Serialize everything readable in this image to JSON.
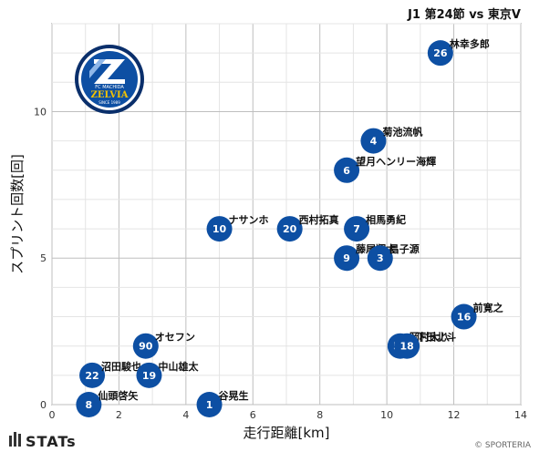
{
  "chart_data": {
    "type": "scatter",
    "title": "J1 第24節 vs 東京V",
    "xlabel": "走行距離[km]",
    "ylabel": "スプリント回数[回]",
    "xlim": [
      0,
      14
    ],
    "ylim": [
      0,
      13
    ],
    "xticks": [
      0,
      2,
      4,
      6,
      8,
      10,
      12,
      14
    ],
    "yticks": [
      0,
      5,
      10
    ],
    "grid": true,
    "marker_color": "#0d4fa3",
    "points": [
      {
        "number": "26",
        "name": "林幸多郎",
        "x": 11.6,
        "y": 12
      },
      {
        "number": "4",
        "name": "菊池流帆",
        "x": 9.6,
        "y": 9
      },
      {
        "number": "6",
        "name": "望月ヘンリー海輝",
        "x": 8.8,
        "y": 8
      },
      {
        "number": "10",
        "name": "ナサンホ",
        "x": 5.0,
        "y": 6
      },
      {
        "number": "20",
        "name": "西村拓真",
        "x": 7.1,
        "y": 6
      },
      {
        "number": "7",
        "name": "相馬勇紀",
        "x": 9.1,
        "y": 6
      },
      {
        "number": "9",
        "name": "藤尾翔太",
        "x": 8.8,
        "y": 5
      },
      {
        "number": "3",
        "name": "昌子源",
        "x": 9.8,
        "y": 5
      },
      {
        "number": "16",
        "name": "前寛之",
        "x": 12.3,
        "y": 3
      },
      {
        "number": "90",
        "name": "オセフン",
        "x": 2.8,
        "y": 2
      },
      {
        "number": "50",
        "name": "岡村大八",
        "x": 10.4,
        "y": 2
      },
      {
        "number": "18",
        "name": "下田北斗",
        "x": 10.6,
        "y": 2
      },
      {
        "number": "22",
        "name": "沼田駿也",
        "x": 1.2,
        "y": 1
      },
      {
        "number": "19",
        "name": "中山雄太",
        "x": 2.9,
        "y": 1
      },
      {
        "number": "8",
        "name": "仙頭啓矢",
        "x": 1.1,
        "y": 0
      },
      {
        "number": "1",
        "name": "谷晃生",
        "x": 4.7,
        "y": 0
      }
    ]
  },
  "logo": {
    "top_text": "FC MACHIDA",
    "main_text": "ZELVIA",
    "bottom_text": "SINCE 1989"
  },
  "footer": {
    "brand": "STATs",
    "credit": "© SPORTERIA"
  }
}
